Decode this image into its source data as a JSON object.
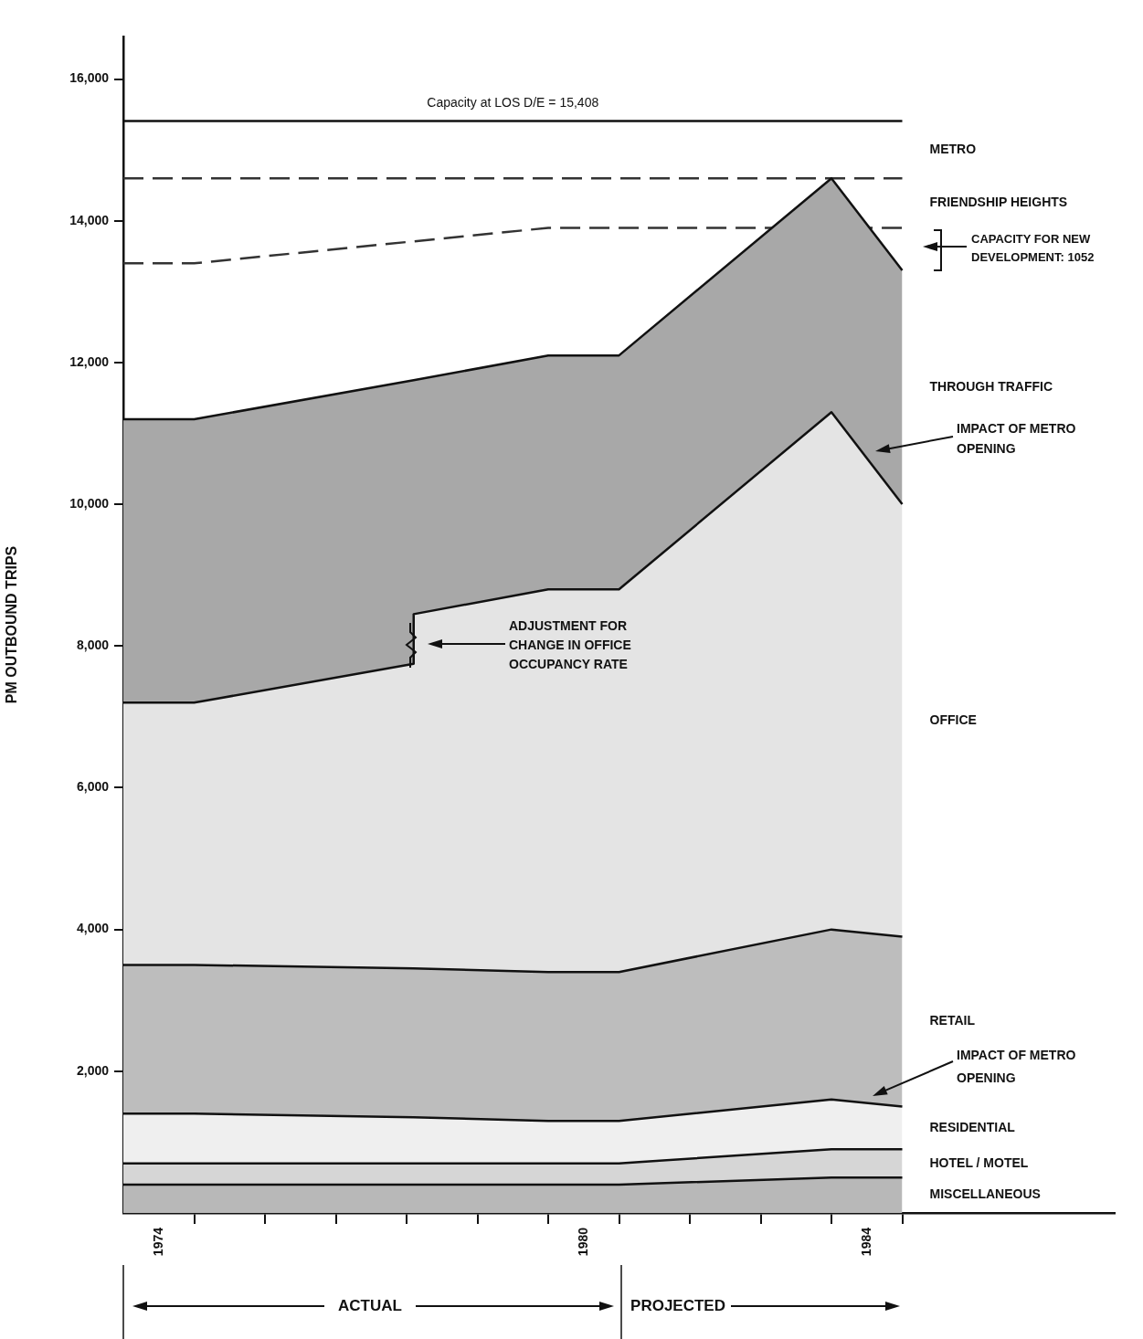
{
  "chart_data": {
    "type": "area",
    "ylabel": "PM OUTBOUND TRIPS",
    "stacked": true,
    "grid": false,
    "legend": false,
    "x": [
      1974,
      1975,
      1978.1,
      1978.1,
      1980,
      1981,
      1984,
      1985
    ],
    "xlim": [
      1974,
      1988
    ],
    "xticks": [
      {
        "value": 1974.5,
        "label": "1974"
      },
      {
        "value": 1975,
        "label": null
      },
      {
        "value": 1976,
        "label": null
      },
      {
        "value": 1977,
        "label": null
      },
      {
        "value": 1978,
        "label": null
      },
      {
        "value": 1979,
        "label": null
      },
      {
        "value": 1980,
        "label": null
      },
      {
        "value": 1980.5,
        "label": "1980"
      },
      {
        "value": 1981,
        "label": null
      },
      {
        "value": 1982,
        "label": null
      },
      {
        "value": 1983,
        "label": null
      },
      {
        "value": 1984,
        "label": null
      },
      {
        "value": 1984.5,
        "label": "1984"
      },
      {
        "value": 1985,
        "label": null
      }
    ],
    "ylim": [
      0,
      16600
    ],
    "yticks": [
      {
        "value": 2000,
        "label": "2,000"
      },
      {
        "value": 4000,
        "label": "4,000"
      },
      {
        "value": 6000,
        "label": "6,000"
      },
      {
        "value": 8000,
        "label": "8,000"
      },
      {
        "value": 10000,
        "label": "10,000"
      },
      {
        "value": 12000,
        "label": "12,000"
      },
      {
        "value": 14000,
        "label": "14,000"
      },
      {
        "value": 16000,
        "label": "16,000"
      }
    ],
    "series": [
      {
        "name": "MISCELLANEOUS",
        "color": "#b8b8b8",
        "values": [
          400,
          400,
          400,
          400,
          400,
          400,
          500,
          500
        ]
      },
      {
        "name": "HOTEL / MOTEL",
        "color": "#d6d6d6",
        "values": [
          300,
          300,
          300,
          300,
          300,
          300,
          400,
          400
        ]
      },
      {
        "name": "RESIDENTIAL",
        "color": "#efefef",
        "values": [
          700,
          700,
          650,
          650,
          600,
          600,
          700,
          600
        ]
      },
      {
        "name": "RETAIL",
        "color": "#bdbdbd",
        "values": [
          2100,
          2100,
          2100,
          2100,
          2100,
          2100,
          2400,
          2400
        ]
      },
      {
        "name": "OFFICE",
        "color": "#e4e4e4",
        "values": [
          3700,
          3700,
          4300,
          5000,
          5400,
          5400,
          7300,
          6100
        ]
      },
      {
        "name": "THROUGH TRAFFIC",
        "color": "#a8a8a8",
        "values": [
          4000,
          4000,
          4000,
          3300,
          3300,
          3300,
          3300,
          3300
        ]
      },
      {
        "name": "FRIENDSHIP HEIGHTS",
        "type": "line",
        "line_style": "dashed",
        "color": "#333333",
        "x": [
          1974,
          1975,
          1980,
          1985
        ],
        "values": [
          13400,
          13400,
          13900,
          13900
        ]
      },
      {
        "name": "METRO",
        "type": "line",
        "line_style": "dashed",
        "color": "#333333",
        "x": [
          1974,
          1985
        ],
        "values": [
          14600,
          14600
        ]
      }
    ],
    "ref_lines": [
      {
        "axis": "y",
        "value": 15408,
        "label": "Capacity at LOS D/E = 15,408"
      }
    ],
    "annotations": [
      "ADJUSTMENT FOR CHANGE IN OFFICE OCCUPANCY RATE",
      "IMPACT OF METRO OPENING",
      "IMPACT OF METRO OPENING",
      "CAPACITY FOR NEW DEVELOPMENT: 1052",
      "ACTUAL",
      "PROJECTED"
    ]
  }
}
